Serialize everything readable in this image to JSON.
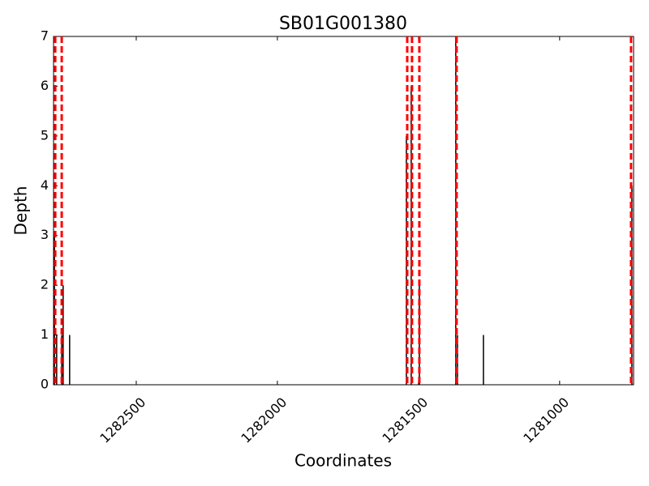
{
  "chart_data": {
    "type": "bar",
    "title": "SB01G001380",
    "x_label": "Coordinates",
    "y_label": "Depth",
    "x": [
      1282790,
      1282782,
      1282764,
      1282759,
      1282736,
      1281543,
      1281526,
      1281497,
      1281368,
      1281362,
      1281270,
      1280744
    ],
    "values": [
      3,
      1,
      1,
      2,
      1,
      5,
      6,
      2,
      7,
      1,
      1,
      4
    ],
    "color": "#000000",
    "vlines": {
      "values": [
        1282787,
        1282764,
        1281540,
        1281523,
        1281497,
        1281365,
        1280747
      ],
      "color": "#ff0000",
      "dashed": true
    },
    "xlim": [
      1282793,
      1280738
    ],
    "ylim": [
      0,
      7
    ],
    "xticks": [
      1282500,
      1282000,
      1281500,
      1281000
    ],
    "yticks": [
      0,
      1,
      2,
      3,
      4,
      5,
      6,
      7
    ],
    "grid": false
  }
}
